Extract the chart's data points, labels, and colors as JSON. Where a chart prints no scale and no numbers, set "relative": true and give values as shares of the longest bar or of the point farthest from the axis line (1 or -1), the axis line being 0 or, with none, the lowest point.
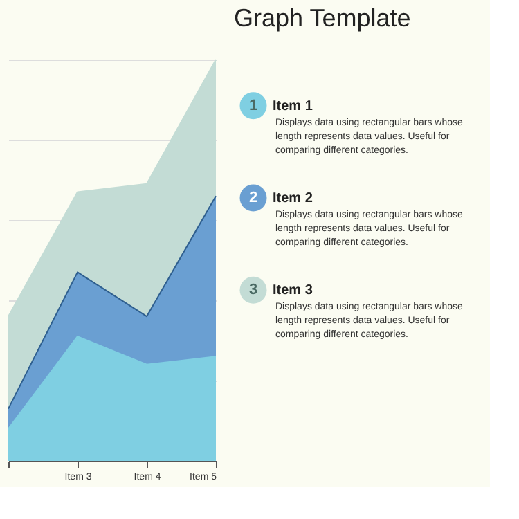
{
  "chart_data": {
    "type": "area",
    "title": "Graph Template",
    "relative": true,
    "grid": "y",
    "legend": "right",
    "categories": [
      null,
      "Item 3",
      "Item 4",
      "Item 5"
    ],
    "series": [
      {
        "name": "Item 3",
        "color": "#c3dcd5",
        "values": [
          0.36,
          0.67,
          0.69,
          1
        ]
      },
      {
        "name": "Item 2",
        "color": "#6a9fd2",
        "values": [
          0.13,
          0.47,
          0.36,
          0.66
        ]
      },
      {
        "name": "Item 1",
        "color": "#7fcfe2",
        "values": [
          0.08,
          0.31,
          0.24,
          0.26
        ]
      }
    ],
    "annotations": [
      "1",
      "2",
      "3",
      "Displays data using rectangular bars whose length represents data values. Useful for comparing different categories.",
      "Displays data using rectangular bars whose length represents data values. Useful for comparing different categories.",
      "Displays data using rectangular bars whose length represents data values. Useful for comparing different categories."
    ]
  }
}
